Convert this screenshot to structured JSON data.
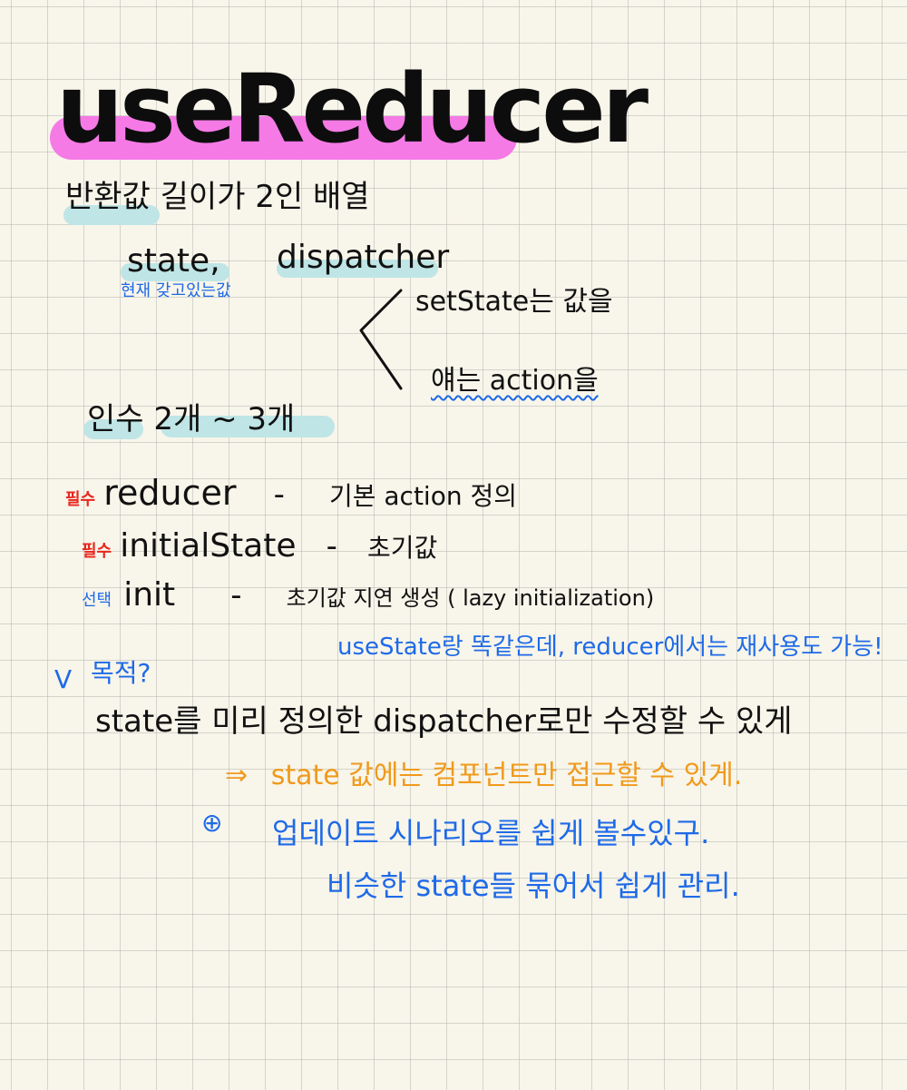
{
  "title": "useReducer",
  "return_value": {
    "line": "반환값 길이가 2인 배열",
    "state_label": "state,",
    "dispatcher_label": "dispatcher",
    "state_note": "현재 갖고있는값",
    "setstate_note": "setState는 값을",
    "action_note": "얘는 action을"
  },
  "args": {
    "line": "인수 2개 ~ 3개",
    "items": [
      {
        "tag": "필수",
        "name": "reducer",
        "dash": "-",
        "desc": "기본 action 정의"
      },
      {
        "tag": "필수",
        "name": "initialState",
        "dash": "-",
        "desc": "초기값"
      },
      {
        "tag": "선택",
        "name": "init",
        "dash": "-",
        "desc": "초기값 지연 생성 ( lazy initialization)"
      }
    ],
    "note": "useState랑 똑같은데, reducer에서는 재사용도 가능!"
  },
  "purpose": {
    "check": "V",
    "heading": "목적?",
    "line": "state를 미리 정의한 dispatcher로만 수정할 수 있게",
    "arrow": "⇒",
    "result": "state 값에는 컴포넌트만 접근할 수 있게.",
    "plus": "⊕",
    "benefit1": "업데이트 시나리오를 쉽게 볼수있구.",
    "benefit2": "비슷한 state들 묶어서 쉽게 관리."
  }
}
